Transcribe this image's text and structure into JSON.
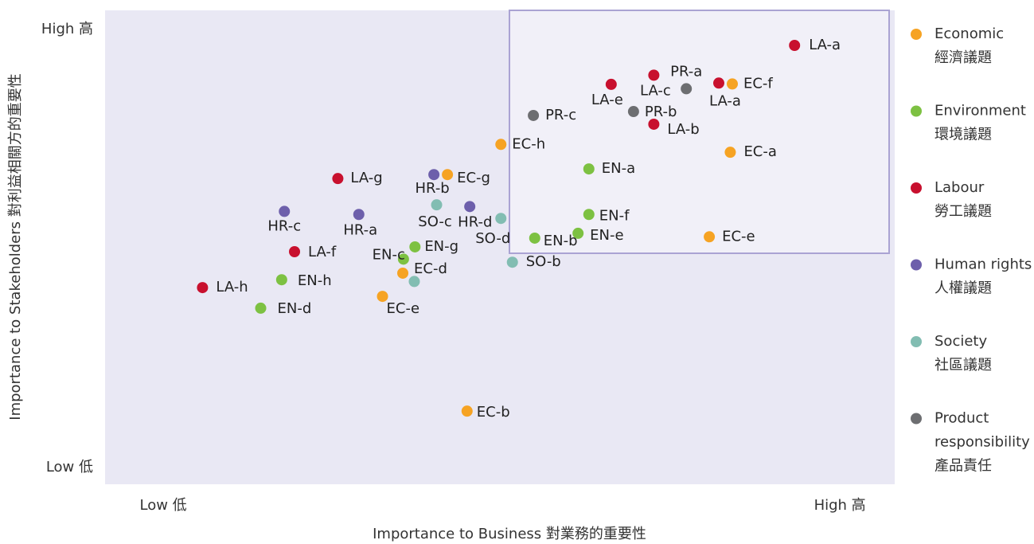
{
  "chart_data": {
    "type": "scatter",
    "xlabel": "Importance to Business 對業務的重要性",
    "ylabel": "Importance to Stakeholders 對利益相關方的重要性",
    "xlim": [
      -0.86,
      10.81
    ],
    "ylim": [
      -0.38,
      10.44
    ],
    "xticks": [
      {
        "value": 0,
        "label": "Low 低"
      },
      {
        "value": 10,
        "label": "High 高"
      }
    ],
    "yticks": [
      {
        "value": 0,
        "label": "Low 低"
      },
      {
        "value": 10,
        "label": "High 高"
      }
    ],
    "series": [
      {
        "name": "Economic",
        "name_zh": "經濟議題",
        "color": "#f6a323",
        "labels": [
          "EC-f",
          "EC-h",
          "EC-a",
          "EC-g",
          "EC-e",
          "EC-d",
          "EC-e",
          "EC-b"
        ],
        "x": [
          8.41,
          4.99,
          8.38,
          4.2,
          8.07,
          3.54,
          3.24,
          4.49
        ],
        "values": [
          8.76,
          7.38,
          7.2,
          6.69,
          5.27,
          4.44,
          3.91,
          1.29
        ]
      },
      {
        "name": "Environment",
        "name_zh": "環境議題",
        "color": "#7dc142",
        "labels": [
          "EN-a",
          "EN-f",
          "EN-e",
          "EN-b",
          "EN-g",
          "EN-c",
          "EN-h",
          "EN-d"
        ],
        "x": [
          6.29,
          6.29,
          6.13,
          5.49,
          3.72,
          3.55,
          1.75,
          1.44
        ],
        "values": [
          6.82,
          5.78,
          5.35,
          5.24,
          5.04,
          4.76,
          4.29,
          3.64
        ]
      },
      {
        "name": "Labour",
        "name_zh": "勞工議題",
        "color": "#c8102e",
        "labels": [
          "LA-a",
          "LA-c",
          "LA-e",
          "LA-a",
          "LA-b",
          "LA-g",
          "LA-f",
          "LA-h"
        ],
        "x": [
          9.33,
          7.25,
          6.62,
          8.21,
          7.25,
          2.58,
          1.94,
          0.58
        ],
        "values": [
          9.64,
          8.96,
          8.75,
          8.78,
          7.84,
          6.6,
          4.93,
          4.11
        ]
      },
      {
        "name": "Human rights",
        "name_zh": "人權議題",
        "color": "#6d5fab",
        "labels": [
          "HR-b",
          "HR-d",
          "HR-a",
          "HR-c"
        ],
        "x": [
          4.0,
          4.53,
          2.89,
          1.79
        ],
        "values": [
          6.69,
          5.96,
          5.78,
          5.85
        ]
      },
      {
        "name": "Society",
        "name_zh": "社區議題",
        "color": "#82bdb2",
        "labels": [
          "SO-c",
          "SO-d",
          "SO-b",
          null
        ],
        "x": [
          4.04,
          4.99,
          5.16,
          3.71
        ],
        "values": [
          6.0,
          5.69,
          4.69,
          4.25
        ]
      },
      {
        "name": "Product responsibility",
        "name_zh": "產品責任",
        "color": "#6d6e71",
        "labels": [
          "PR-a",
          "PR-b",
          "PR-c"
        ],
        "x": [
          7.73,
          6.95,
          5.47
        ],
        "values": [
          8.65,
          8.13,
          8.04
        ]
      }
    ]
  }
}
